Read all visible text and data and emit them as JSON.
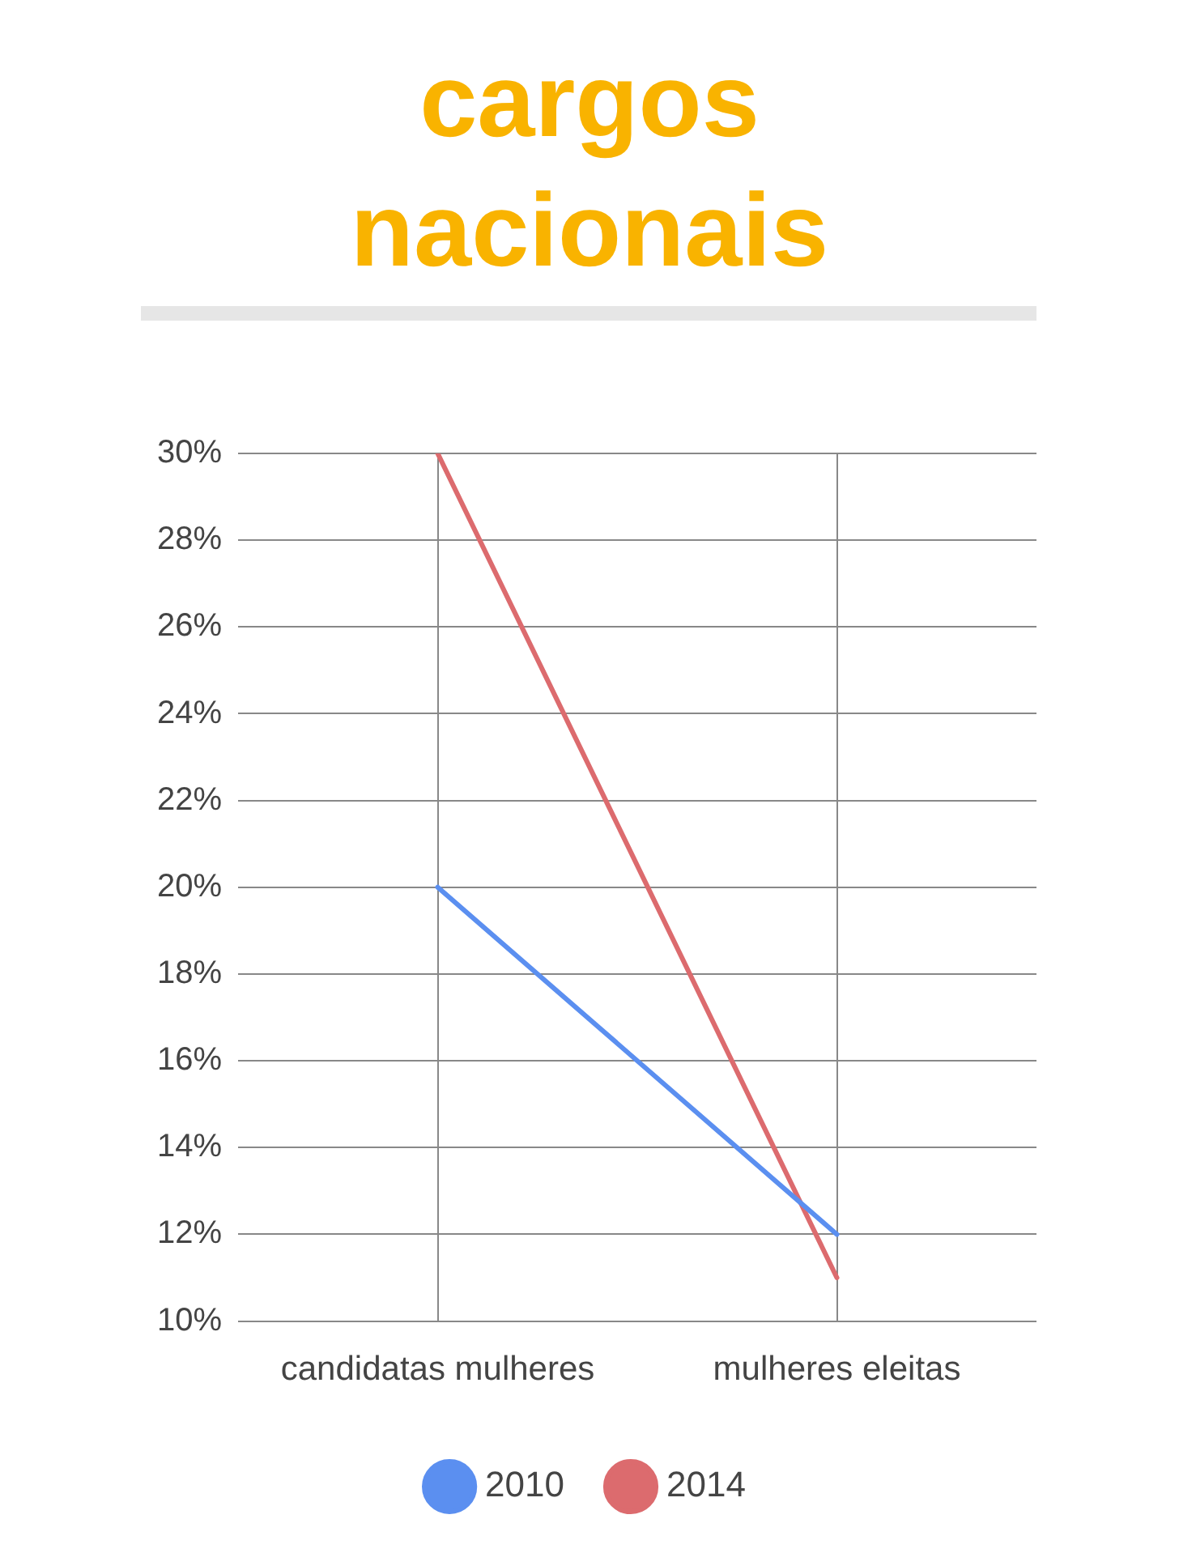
{
  "chart_data": {
    "type": "line",
    "title": "cargos nacionais",
    "categories": [
      "candidatas mulheres",
      "mulheres eleitas"
    ],
    "series": [
      {
        "name": "2010",
        "color": "#5b8ff0",
        "values": [
          20,
          12
        ]
      },
      {
        "name": "2014",
        "color": "#dc6b6e",
        "values": [
          30,
          11
        ]
      }
    ],
    "ylim": [
      10,
      30
    ],
    "yticks": [
      {
        "value": 10,
        "label": "10%"
      },
      {
        "value": 12,
        "label": "12%"
      },
      {
        "value": 14,
        "label": "14%"
      },
      {
        "value": 16,
        "label": "16%"
      },
      {
        "value": 18,
        "label": "18%"
      },
      {
        "value": 20,
        "label": "20%"
      },
      {
        "value": 22,
        "label": "22%"
      },
      {
        "value": 24,
        "label": "24%"
      },
      {
        "value": 26,
        "label": "26%"
      },
      {
        "value": 28,
        "label": "28%"
      },
      {
        "value": 30,
        "label": "30%"
      }
    ],
    "grid": true,
    "legend": "bottom",
    "marker": "none",
    "line_style": "solid"
  }
}
